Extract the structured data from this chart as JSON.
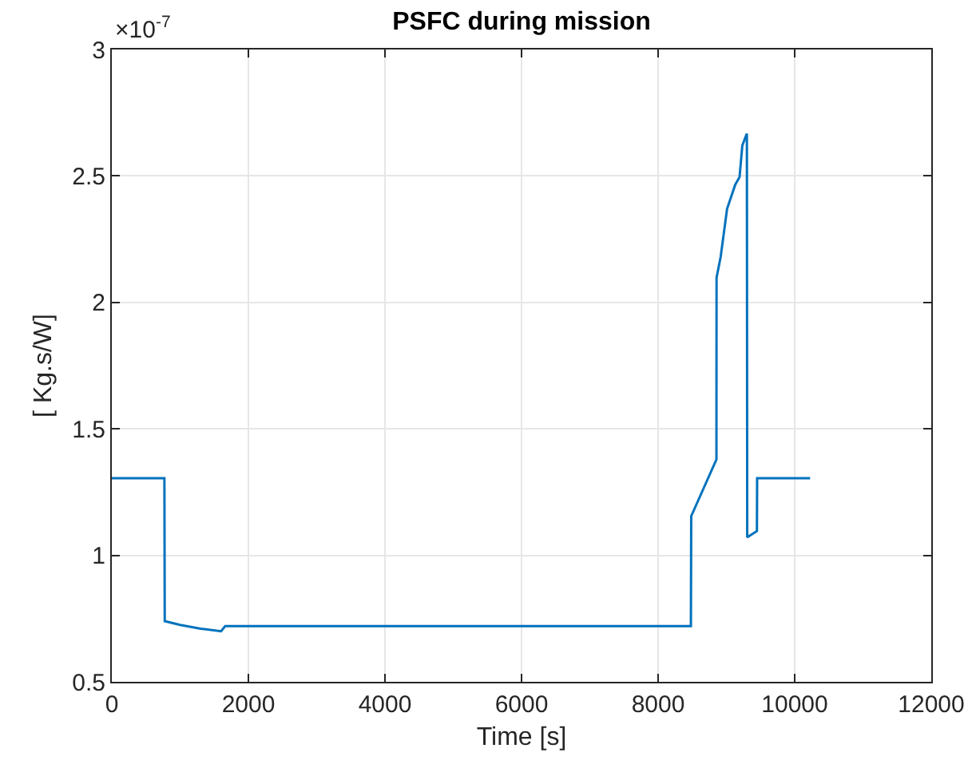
{
  "chart_data": {
    "type": "line",
    "title": "PSFC during mission",
    "xlabel": "Time [s]",
    "ylabel": "[ Kg.s/W]",
    "annotations": [
      "×10$^{-7}$"
    ],
    "x": [
      0,
      770,
      775,
      1000,
      1300,
      1600,
      1660,
      1700,
      4000,
      8480,
      8485,
      8854,
      8856,
      8916,
      9010,
      9129,
      9193,
      9233,
      9288,
      9300,
      9305,
      9447,
      9450,
      10226
    ],
    "series": [
      {
        "color": "#0072bd",
        "values": [
          1.305,
          1.305,
          0.74,
          0.725,
          0.71,
          0.7,
          0.72,
          0.72,
          0.72,
          0.72,
          1.155,
          1.379,
          2.098,
          2.18,
          2.37,
          2.465,
          2.496,
          2.62,
          2.66,
          2.667,
          1.071,
          1.096,
          1.305,
          1.305
        ]
      }
    ],
    "xlim": [
      0,
      12000
    ],
    "xticks": [
      0,
      2000,
      4000,
      6000,
      8000,
      10000,
      12000
    ],
    "ylim": [
      0.5,
      3
    ],
    "yticks": [
      0.5,
      1,
      1.5,
      2,
      2.5,
      3
    ],
    "grid": true,
    "line_style": "solid"
  }
}
